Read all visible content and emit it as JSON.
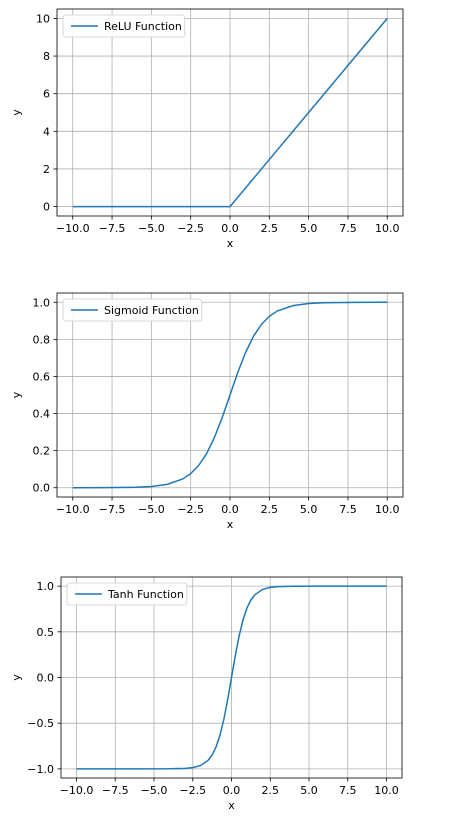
{
  "chart_data": [
    {
      "type": "line",
      "xlabel": "x",
      "ylabel": "y",
      "xlim": [
        -11.0,
        11.0
      ],
      "ylim": [
        -0.5,
        10.5
      ],
      "xticks": [
        -10.0,
        -7.5,
        -5.0,
        -2.5,
        0.0,
        2.5,
        5.0,
        7.5,
        10.0
      ],
      "xtick_labels": [
        "−10.0",
        "−7.5",
        "−5.0",
        "−2.5",
        "0.0",
        "2.5",
        "5.0",
        "7.5",
        "10.0"
      ],
      "yticks": [
        0,
        2,
        4,
        6,
        8,
        10
      ],
      "ytick_labels": [
        "0",
        "2",
        "4",
        "6",
        "8",
        "10"
      ],
      "grid": true,
      "legend_position": "top-left",
      "series": [
        {
          "name": "ReLU Function",
          "color": "#1f77b4",
          "x": [
            -10,
            -5,
            0,
            5,
            10
          ],
          "y": [
            0,
            0,
            0,
            5,
            10
          ]
        }
      ]
    },
    {
      "type": "line",
      "xlabel": "x",
      "ylabel": "y",
      "xlim": [
        -11.0,
        11.0
      ],
      "ylim": [
        -0.05,
        1.05
      ],
      "xticks": [
        -10.0,
        -7.5,
        -5.0,
        -2.5,
        0.0,
        2.5,
        5.0,
        7.5,
        10.0
      ],
      "xtick_labels": [
        "−10.0",
        "−7.5",
        "−5.0",
        "−2.5",
        "0.0",
        "2.5",
        "5.0",
        "7.5",
        "10.0"
      ],
      "yticks": [
        0.0,
        0.2,
        0.4,
        0.6,
        0.8,
        1.0
      ],
      "ytick_labels": [
        "0.0",
        "0.2",
        "0.4",
        "0.6",
        "0.8",
        "1.0"
      ],
      "grid": true,
      "legend_position": "top-left",
      "series": [
        {
          "name": "Sigmoid Function",
          "color": "#1f77b4",
          "x": [
            -10,
            -8,
            -6,
            -5,
            -4,
            -3,
            -2.5,
            -2,
            -1.5,
            -1,
            -0.5,
            0,
            0.5,
            1,
            1.5,
            2,
            2.5,
            3,
            4,
            5,
            6,
            8,
            10
          ],
          "y": [
            0.0,
            0.0003,
            0.0025,
            0.0067,
            0.018,
            0.0474,
            0.0759,
            0.1192,
            0.1824,
            0.2689,
            0.3775,
            0.5,
            0.6225,
            0.7311,
            0.8176,
            0.8808,
            0.9241,
            0.9526,
            0.982,
            0.9933,
            0.9975,
            0.9997,
            1.0
          ]
        }
      ]
    },
    {
      "type": "line",
      "xlabel": "x",
      "ylabel": "y",
      "xlim": [
        -11.0,
        11.0
      ],
      "ylim": [
        -1.1,
        1.1
      ],
      "xticks": [
        -10.0,
        -7.5,
        -5.0,
        -2.5,
        0.0,
        2.5,
        5.0,
        7.5,
        10.0
      ],
      "xtick_labels": [
        "−10.0",
        "−7.5",
        "−5.0",
        "−2.5",
        "0.0",
        "2.5",
        "5.0",
        "7.5",
        "10.0"
      ],
      "yticks": [
        -1.0,
        -0.5,
        0.0,
        0.5,
        1.0
      ],
      "ytick_labels": [
        "−1.0",
        "−0.5",
        "0.0",
        "0.5",
        "1.0"
      ],
      "grid": true,
      "legend_position": "top-left",
      "series": [
        {
          "name": "Tanh Function",
          "color": "#1f77b4",
          "x": [
            -10,
            -6,
            -4,
            -3,
            -2.5,
            -2,
            -1.5,
            -1.25,
            -1,
            -0.75,
            -0.5,
            -0.25,
            0,
            0.25,
            0.5,
            0.75,
            1,
            1.25,
            1.5,
            2,
            2.5,
            3,
            4,
            6,
            10
          ],
          "y": [
            -1.0,
            -1.0,
            -0.9993,
            -0.9951,
            -0.9866,
            -0.964,
            -0.9051,
            -0.8483,
            -0.7616,
            -0.6351,
            -0.4621,
            -0.2449,
            0.0,
            0.2449,
            0.4621,
            0.6351,
            0.7616,
            0.8483,
            0.9051,
            0.964,
            0.9866,
            0.9951,
            0.9993,
            1.0,
            1.0
          ]
        }
      ]
    }
  ]
}
